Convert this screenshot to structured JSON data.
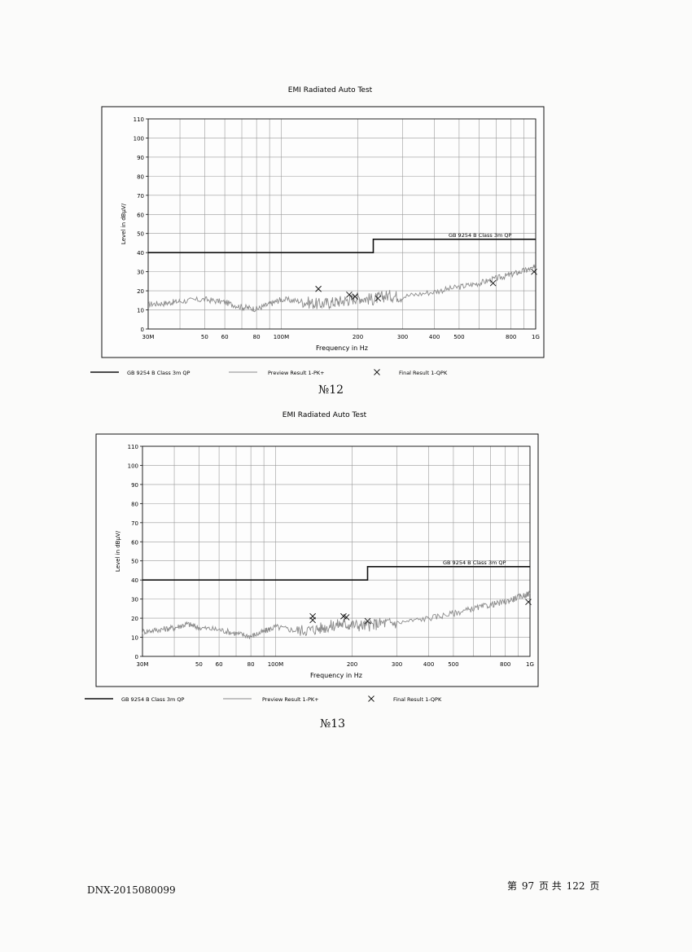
{
  "chart_data": [
    {
      "type": "line",
      "title": "EMI Radiated Auto Test",
      "xlabel": "Frequency in Hz",
      "ylabel": "Level in dBµV/",
      "x_scale": "log",
      "xlim_mhz": [
        30,
        1000
      ],
      "ylim": [
        0,
        110
      ],
      "grid": true,
      "x_tick_labels": [
        "30M",
        "50",
        "60",
        "80",
        "100M",
        "200",
        "300",
        "400",
        "500",
        "800",
        "1G"
      ],
      "x_tick_values_mhz": [
        30,
        50,
        60,
        80,
        100,
        200,
        300,
        400,
        500,
        800,
        1000
      ],
      "y_ticks": [
        0,
        10,
        20,
        30,
        40,
        50,
        60,
        70,
        80,
        90,
        100,
        110
      ],
      "limit_line": {
        "name": "GB 9254 B Class 3m QP",
        "segments": [
          {
            "x_mhz": [
              30,
              230
            ],
            "level": 40
          },
          {
            "x_mhz": [
              230,
              1000
            ],
            "level": 47
          }
        ]
      },
      "preview_series": {
        "name": "Preview Result 1-PK+",
        "x_mhz": [
          30,
          35,
          40,
          50,
          60,
          70,
          80,
          90,
          100,
          120,
          140,
          160,
          180,
          200,
          230,
          260,
          300,
          400,
          500,
          600,
          700,
          800,
          900,
          1000
        ],
        "level": [
          13,
          13.5,
          14.5,
          15.5,
          14,
          11.5,
          10.5,
          13,
          15.5,
          14.5,
          13,
          14,
          15,
          16.5,
          15.5,
          17.5,
          17,
          19.5,
          22,
          24,
          26.5,
          28.5,
          30.5,
          32
        ]
      },
      "final_series": {
        "name": "Final Result 1-QPK",
        "x_mhz": [
          140,
          185,
          195,
          240,
          680,
          1000
        ],
        "level": [
          21,
          18,
          17,
          16,
          24,
          30
        ]
      },
      "caption": "№12"
    },
    {
      "type": "line",
      "title": "EMI Radiated Auto Test",
      "xlabel": "Frequency in Hz",
      "ylabel": "Level in dBµV/",
      "x_scale": "log",
      "xlim_mhz": [
        30,
        1000
      ],
      "ylim": [
        0,
        110
      ],
      "grid": true,
      "x_tick_labels": [
        "30M",
        "50",
        "60",
        "80",
        "100M",
        "200",
        "300",
        "400",
        "500",
        "800",
        "1G"
      ],
      "x_tick_values_mhz": [
        30,
        50,
        60,
        80,
        100,
        200,
        300,
        400,
        500,
        800,
        1000
      ],
      "y_ticks": [
        0,
        10,
        20,
        30,
        40,
        50,
        60,
        70,
        80,
        90,
        100,
        110
      ],
      "limit_line": {
        "name": "GB 9254 B Class 3m QP",
        "segments": [
          {
            "x_mhz": [
              30,
              230
            ],
            "level": 40
          },
          {
            "x_mhz": [
              230,
              1000
            ],
            "level": 47
          }
        ]
      },
      "preview_series": {
        "name": "Preview Result 1-PK+",
        "x_mhz": [
          30,
          35,
          40,
          45,
          50,
          60,
          70,
          80,
          90,
          100,
          120,
          140,
          160,
          180,
          200,
          230,
          260,
          300,
          400,
          500,
          600,
          700,
          800,
          900,
          1000
        ],
        "level": [
          13,
          14,
          15,
          17,
          15,
          14,
          12,
          10.5,
          13,
          15.5,
          13.5,
          14,
          15.5,
          17,
          16.5,
          16,
          17.5,
          17.5,
          20,
          22.5,
          25,
          27,
          28.5,
          31,
          33
        ]
      },
      "final_series": {
        "name": "Final Result 1-QPK",
        "x_mhz": [
          140,
          140,
          185,
          190,
          230,
          1000
        ],
        "level": [
          21,
          19,
          21,
          20.5,
          18.5,
          28.5
        ]
      },
      "caption": "№13"
    }
  ],
  "footer": {
    "doc_number": "DNX-2015080099",
    "page_prefix": "第",
    "page_current": "97",
    "page_mid": "页 共",
    "page_total": "122",
    "page_suffix": "页"
  },
  "colors": {
    "limit_line": "#111111",
    "preview": "#8a8a8a",
    "grid": "#9a9a9a",
    "frame": "#111111"
  }
}
